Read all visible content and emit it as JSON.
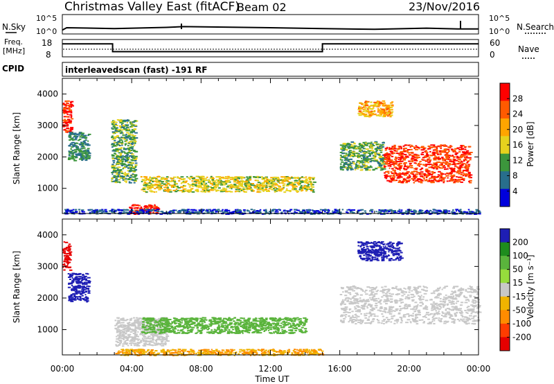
{
  "header": {
    "station": "Christmas Valley East (fitACF)",
    "beam": "Beam 02",
    "date": "23/Nov/2016"
  },
  "noise_panel": {
    "left_label": "N.Sky",
    "right_label": "N.Search",
    "ticks": [
      "10^5",
      "10^0"
    ]
  },
  "freq_panel": {
    "left_label_1": "Freq.",
    "left_label_2": "[MHz]",
    "left_ticks": [
      "18",
      "8"
    ],
    "right_label": "Nave",
    "right_ticks": [
      "60",
      "0"
    ]
  },
  "cpid": {
    "label": "CPID",
    "value": "interleavedscan (fast) -191 RF"
  },
  "x_axis": {
    "label": "Time UT",
    "ticks": [
      "00:00",
      "04:00",
      "08:00",
      "12:00",
      "16:00",
      "20:00",
      "00:00"
    ],
    "range_hours": [
      0,
      24
    ]
  },
  "power_colorbar": {
    "label": "Power [dB]",
    "ticks": [
      "28",
      "24",
      "20",
      "16",
      "12",
      "8",
      "4"
    ],
    "colors": [
      "#ff0000",
      "#ff5a00",
      "#ffa500",
      "#e6d21e",
      "#3c963c",
      "#286e8c",
      "#0000dc"
    ]
  },
  "velocity_colorbar": {
    "label": "Velocity [m s⁻¹]",
    "ticks": [
      "200",
      "100",
      "50",
      "15",
      "-15",
      "-50",
      "-100",
      "-200"
    ],
    "colors": [
      "#1e1eb4",
      "#1e8c1e",
      "#5ab43c",
      "#96dc3c",
      "#c8c8c8",
      "#f0b400",
      "#ff8c00",
      "#ff3c00",
      "#e60000"
    ]
  },
  "chart_data": [
    {
      "type": "line",
      "title": "Noise (N.Sky, N.Search)",
      "x_unit": "hours UT",
      "series": [
        {
          "x": [
            0,
            0.25,
            3,
            6,
            7,
            12,
            15,
            18,
            21,
            22.8,
            24
          ],
          "y": [
            1.0,
            1.6,
            1.4,
            1.7,
            1.9,
            1.6,
            1.4,
            1.2,
            1.5,
            1.3,
            1.3
          ]
        }
      ],
      "ylim": [
        0,
        5
      ]
    },
    {
      "type": "line",
      "title": "Frequency / Nave",
      "x_unit": "hours UT",
      "series": [
        {
          "x": [
            0,
            2.9,
            2.9,
            15,
            15,
            24
          ],
          "y": [
            15.5,
            15.5,
            11,
            11,
            15.5,
            15.5
          ]
        }
      ],
      "ylim": [
        8,
        18
      ]
    },
    {
      "type": "heatmap",
      "title": "Power",
      "xlabel": "Time UT",
      "ylabel": "Slant Range [km]",
      "xlim": [
        0,
        24
      ],
      "ylim": [
        200,
        4500
      ],
      "y_ticks": [
        1000,
        2000,
        3000,
        4000
      ],
      "value_unit": "dB",
      "regions": [
        {
          "t0": 0.0,
          "t1": 0.5,
          "r0": 2800,
          "r1": 3800,
          "value": 26
        },
        {
          "t0": 0.3,
          "t1": 1.5,
          "r0": 1900,
          "r1": 2800,
          "value": 10
        },
        {
          "t0": 2.8,
          "t1": 4.2,
          "r0": 1200,
          "r1": 3200,
          "value": 12
        },
        {
          "t0": 3.8,
          "t1": 5.5,
          "r0": 200,
          "r1": 500,
          "value": 28
        },
        {
          "t0": 4.5,
          "t1": 14.5,
          "r0": 900,
          "r1": 1400,
          "value": 16
        },
        {
          "t0": 16.0,
          "t1": 18.5,
          "r0": 1600,
          "r1": 2500,
          "value": 12
        },
        {
          "t0": 17.0,
          "t1": 19.0,
          "r0": 3300,
          "r1": 3800,
          "value": 20
        },
        {
          "t0": 18.5,
          "t1": 23.5,
          "r0": 1200,
          "r1": 2400,
          "value": 26
        },
        {
          "t0": 0.0,
          "t1": 24.0,
          "r0": 200,
          "r1": 350,
          "value": 6
        }
      ]
    },
    {
      "type": "heatmap",
      "title": "Velocity",
      "xlabel": "Time UT",
      "ylabel": "Slant Range [km]",
      "xlim": [
        0,
        24
      ],
      "ylim": [
        200,
        4500
      ],
      "y_ticks": [
        1000,
        2000,
        3000,
        4000
      ],
      "value_unit": "m s^-1",
      "regions": [
        {
          "t0": 0.0,
          "t1": 0.4,
          "r0": 2900,
          "r1": 3800,
          "value": -200
        },
        {
          "t0": 0.3,
          "t1": 1.5,
          "r0": 1900,
          "r1": 2800,
          "value": 200
        },
        {
          "t0": 3.0,
          "t1": 6.0,
          "r0": 500,
          "r1": 1400,
          "value": 0
        },
        {
          "t0": 4.5,
          "t1": 14.0,
          "r0": 900,
          "r1": 1400,
          "value": 60
        },
        {
          "t0": 3.0,
          "t1": 15.0,
          "r0": 200,
          "r1": 400,
          "value": -30
        },
        {
          "t0": 16.0,
          "t1": 24.0,
          "r0": 1200,
          "r1": 2400,
          "value": 0
        },
        {
          "t0": 17.0,
          "t1": 19.5,
          "r0": 3200,
          "r1": 3800,
          "value": 200
        }
      ]
    }
  ]
}
